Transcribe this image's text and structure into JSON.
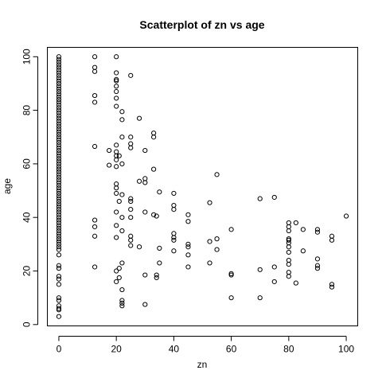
{
  "chart_data": {
    "type": "scatter",
    "title": "Scatterplot of zn vs age",
    "xlabel": "zn",
    "ylabel": "age",
    "xlim": [
      -4,
      104
    ],
    "ylim": [
      -0.5,
      103.5
    ],
    "xticks": [
      0,
      20,
      40,
      60,
      80,
      100
    ],
    "yticks": [
      0,
      20,
      40,
      60,
      80,
      100
    ],
    "grid": false,
    "points": [
      {
        "x": 0,
        "y": 100
      },
      {
        "x": 0,
        "y": 99
      },
      {
        "x": 0,
        "y": 98
      },
      {
        "x": 0,
        "y": 97
      },
      {
        "x": 0,
        "y": 96
      },
      {
        "x": 0,
        "y": 95
      },
      {
        "x": 0,
        "y": 94
      },
      {
        "x": 0,
        "y": 93
      },
      {
        "x": 0,
        "y": 92
      },
      {
        "x": 0,
        "y": 91
      },
      {
        "x": 0,
        "y": 90
      },
      {
        "x": 0,
        "y": 89
      },
      {
        "x": 0,
        "y": 88
      },
      {
        "x": 0,
        "y": 87
      },
      {
        "x": 0,
        "y": 86
      },
      {
        "x": 0,
        "y": 85
      },
      {
        "x": 0,
        "y": 84
      },
      {
        "x": 0,
        "y": 83
      },
      {
        "x": 0,
        "y": 82
      },
      {
        "x": 0,
        "y": 81
      },
      {
        "x": 0,
        "y": 80
      },
      {
        "x": 0,
        "y": 79
      },
      {
        "x": 0,
        "y": 78
      },
      {
        "x": 0,
        "y": 77
      },
      {
        "x": 0,
        "y": 76
      },
      {
        "x": 0,
        "y": 75
      },
      {
        "x": 0,
        "y": 74
      },
      {
        "x": 0,
        "y": 73
      },
      {
        "x": 0,
        "y": 72
      },
      {
        "x": 0,
        "y": 71
      },
      {
        "x": 0,
        "y": 70
      },
      {
        "x": 0,
        "y": 69
      },
      {
        "x": 0,
        "y": 68
      },
      {
        "x": 0,
        "y": 67
      },
      {
        "x": 0,
        "y": 66
      },
      {
        "x": 0,
        "y": 65
      },
      {
        "x": 0,
        "y": 64
      },
      {
        "x": 0,
        "y": 63
      },
      {
        "x": 0,
        "y": 62
      },
      {
        "x": 0,
        "y": 61
      },
      {
        "x": 0,
        "y": 60
      },
      {
        "x": 0,
        "y": 59
      },
      {
        "x": 0,
        "y": 58
      },
      {
        "x": 0,
        "y": 57
      },
      {
        "x": 0,
        "y": 56
      },
      {
        "x": 0,
        "y": 55
      },
      {
        "x": 0,
        "y": 54
      },
      {
        "x": 0,
        "y": 53
      },
      {
        "x": 0,
        "y": 52
      },
      {
        "x": 0,
        "y": 51
      },
      {
        "x": 0,
        "y": 50
      },
      {
        "x": 0,
        "y": 49
      },
      {
        "x": 0,
        "y": 48
      },
      {
        "x": 0,
        "y": 47
      },
      {
        "x": 0,
        "y": 46
      },
      {
        "x": 0,
        "y": 45
      },
      {
        "x": 0,
        "y": 44
      },
      {
        "x": 0,
        "y": 43
      },
      {
        "x": 0,
        "y": 42
      },
      {
        "x": 0,
        "y": 41
      },
      {
        "x": 0,
        "y": 40
      },
      {
        "x": 0,
        "y": 39
      },
      {
        "x": 0,
        "y": 38
      },
      {
        "x": 0,
        "y": 37
      },
      {
        "x": 0,
        "y": 36
      },
      {
        "x": 0,
        "y": 35
      },
      {
        "x": 0,
        "y": 34
      },
      {
        "x": 0,
        "y": 33
      },
      {
        "x": 0,
        "y": 32
      },
      {
        "x": 0,
        "y": 31
      },
      {
        "x": 0,
        "y": 30
      },
      {
        "x": 0,
        "y": 29
      },
      {
        "x": 0,
        "y": 28
      },
      {
        "x": 0,
        "y": 26
      },
      {
        "x": 0,
        "y": 22
      },
      {
        "x": 0,
        "y": 21
      },
      {
        "x": 0,
        "y": 18
      },
      {
        "x": 0,
        "y": 17
      },
      {
        "x": 0,
        "y": 15
      },
      {
        "x": 0,
        "y": 10
      },
      {
        "x": 0,
        "y": 9
      },
      {
        "x": 0,
        "y": 7
      },
      {
        "x": 0,
        "y": 6
      },
      {
        "x": 0,
        "y": 5.5
      },
      {
        "x": 0,
        "y": 3
      },
      {
        "x": 12.5,
        "y": 100
      },
      {
        "x": 12.5,
        "y": 96
      },
      {
        "x": 12.5,
        "y": 94.5
      },
      {
        "x": 12.5,
        "y": 85.5
      },
      {
        "x": 12.5,
        "y": 83
      },
      {
        "x": 12.5,
        "y": 66.5
      },
      {
        "x": 12.5,
        "y": 39
      },
      {
        "x": 12.5,
        "y": 36.5
      },
      {
        "x": 12.5,
        "y": 33
      },
      {
        "x": 12.5,
        "y": 21.5
      },
      {
        "x": 17.5,
        "y": 65
      },
      {
        "x": 17.5,
        "y": 59.5
      },
      {
        "x": 20,
        "y": 100
      },
      {
        "x": 20,
        "y": 94
      },
      {
        "x": 20,
        "y": 91.5
      },
      {
        "x": 20,
        "y": 91
      },
      {
        "x": 20,
        "y": 89
      },
      {
        "x": 20,
        "y": 87
      },
      {
        "x": 20,
        "y": 84.5
      },
      {
        "x": 20,
        "y": 81.5
      },
      {
        "x": 20,
        "y": 67
      },
      {
        "x": 20,
        "y": 64.5
      },
      {
        "x": 20,
        "y": 63
      },
      {
        "x": 20,
        "y": 61.5
      },
      {
        "x": 20,
        "y": 59
      },
      {
        "x": 20,
        "y": 52.5
      },
      {
        "x": 20,
        "y": 51
      },
      {
        "x": 20,
        "y": 49
      },
      {
        "x": 20,
        "y": 42
      },
      {
        "x": 20,
        "y": 37
      },
      {
        "x": 20,
        "y": 32.5
      },
      {
        "x": 20,
        "y": 20
      },
      {
        "x": 20,
        "y": 16
      },
      {
        "x": 21,
        "y": 63
      },
      {
        "x": 21,
        "y": 46
      },
      {
        "x": 21,
        "y": 21
      },
      {
        "x": 21,
        "y": 17.5
      },
      {
        "x": 22,
        "y": 79.5
      },
      {
        "x": 22,
        "y": 76.5
      },
      {
        "x": 22,
        "y": 70
      },
      {
        "x": 22,
        "y": 60
      },
      {
        "x": 22,
        "y": 48.5
      },
      {
        "x": 22,
        "y": 40
      },
      {
        "x": 22,
        "y": 35
      },
      {
        "x": 22,
        "y": 23
      },
      {
        "x": 22,
        "y": 13
      },
      {
        "x": 22,
        "y": 9
      },
      {
        "x": 22,
        "y": 8
      },
      {
        "x": 22,
        "y": 7
      },
      {
        "x": 25,
        "y": 93
      },
      {
        "x": 25,
        "y": 70
      },
      {
        "x": 25,
        "y": 67.5
      },
      {
        "x": 25,
        "y": 66
      },
      {
        "x": 25,
        "y": 47
      },
      {
        "x": 25,
        "y": 46
      },
      {
        "x": 25,
        "y": 43
      },
      {
        "x": 25,
        "y": 40
      },
      {
        "x": 25,
        "y": 33
      },
      {
        "x": 25,
        "y": 31.5
      },
      {
        "x": 25,
        "y": 29.5
      },
      {
        "x": 28,
        "y": 77
      },
      {
        "x": 28,
        "y": 53.5
      },
      {
        "x": 28,
        "y": 29
      },
      {
        "x": 30,
        "y": 65
      },
      {
        "x": 30,
        "y": 54.5
      },
      {
        "x": 30,
        "y": 53
      },
      {
        "x": 30,
        "y": 42
      },
      {
        "x": 30,
        "y": 18.5
      },
      {
        "x": 30,
        "y": 7.5
      },
      {
        "x": 33,
        "y": 71.5
      },
      {
        "x": 33,
        "y": 70
      },
      {
        "x": 33,
        "y": 58
      },
      {
        "x": 33,
        "y": 41
      },
      {
        "x": 34,
        "y": 40.5
      },
      {
        "x": 34,
        "y": 18.5
      },
      {
        "x": 34,
        "y": 17.5
      },
      {
        "x": 35,
        "y": 49.5
      },
      {
        "x": 35,
        "y": 28.5
      },
      {
        "x": 35,
        "y": 23
      },
      {
        "x": 40,
        "y": 49
      },
      {
        "x": 40,
        "y": 44.5
      },
      {
        "x": 40,
        "y": 43
      },
      {
        "x": 40,
        "y": 34
      },
      {
        "x": 40,
        "y": 32.5
      },
      {
        "x": 40,
        "y": 31.5
      },
      {
        "x": 40,
        "y": 27.5
      },
      {
        "x": 45,
        "y": 41
      },
      {
        "x": 45,
        "y": 38.5
      },
      {
        "x": 45,
        "y": 30
      },
      {
        "x": 45,
        "y": 29
      },
      {
        "x": 45,
        "y": 26
      },
      {
        "x": 45,
        "y": 21.5
      },
      {
        "x": 52.5,
        "y": 45.5
      },
      {
        "x": 52.5,
        "y": 31
      },
      {
        "x": 52.5,
        "y": 23
      },
      {
        "x": 55,
        "y": 56
      },
      {
        "x": 55,
        "y": 32
      },
      {
        "x": 55,
        "y": 28
      },
      {
        "x": 60,
        "y": 35.5
      },
      {
        "x": 60,
        "y": 19
      },
      {
        "x": 60,
        "y": 18.5
      },
      {
        "x": 60,
        "y": 10
      },
      {
        "x": 70,
        "y": 47
      },
      {
        "x": 70,
        "y": 20.5
      },
      {
        "x": 70,
        "y": 10
      },
      {
        "x": 75,
        "y": 47.5
      },
      {
        "x": 75,
        "y": 21.5
      },
      {
        "x": 75,
        "y": 16
      },
      {
        "x": 80,
        "y": 38
      },
      {
        "x": 80,
        "y": 36.5
      },
      {
        "x": 80,
        "y": 35
      },
      {
        "x": 80,
        "y": 32
      },
      {
        "x": 80,
        "y": 31.5
      },
      {
        "x": 80,
        "y": 30.5
      },
      {
        "x": 80,
        "y": 29
      },
      {
        "x": 80,
        "y": 27
      },
      {
        "x": 80,
        "y": 24
      },
      {
        "x": 80,
        "y": 22.5
      },
      {
        "x": 80,
        "y": 19.5
      },
      {
        "x": 80,
        "y": 18
      },
      {
        "x": 82.5,
        "y": 38
      },
      {
        "x": 82.5,
        "y": 15.5
      },
      {
        "x": 85,
        "y": 35.5
      },
      {
        "x": 85,
        "y": 27.5
      },
      {
        "x": 90,
        "y": 35.5
      },
      {
        "x": 90,
        "y": 34.5
      },
      {
        "x": 90,
        "y": 24.5
      },
      {
        "x": 90,
        "y": 22
      },
      {
        "x": 90,
        "y": 21
      },
      {
        "x": 95,
        "y": 33
      },
      {
        "x": 95,
        "y": 31.5
      },
      {
        "x": 95,
        "y": 15
      },
      {
        "x": 95,
        "y": 14
      },
      {
        "x": 100,
        "y": 40.5
      }
    ]
  }
}
